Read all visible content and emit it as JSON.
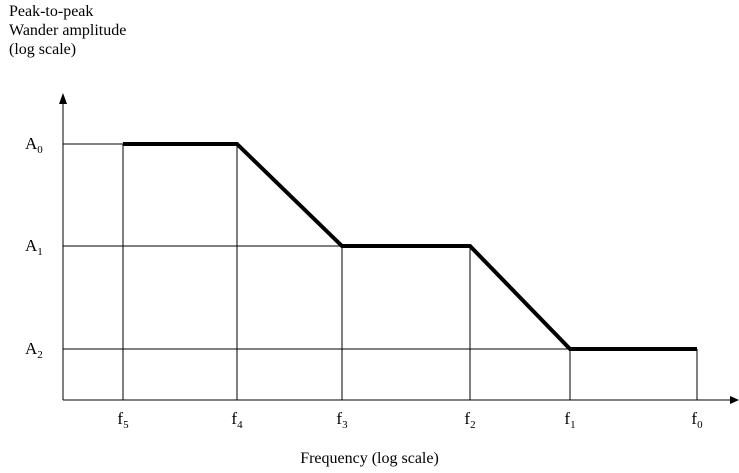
{
  "chart_data": {
    "type": "line",
    "title": "",
    "ylabel_lines": [
      "Peak-to-peak",
      "Wander amplitude",
      "(log scale)"
    ],
    "xlabel": "Frequency (log scale)",
    "x_ticks": [
      {
        "base": "f",
        "sub": "5"
      },
      {
        "base": "f",
        "sub": "4"
      },
      {
        "base": "f",
        "sub": "3"
      },
      {
        "base": "f",
        "sub": "2"
      },
      {
        "base": "f",
        "sub": "1"
      },
      {
        "base": "f",
        "sub": "0"
      }
    ],
    "y_ticks": [
      {
        "base": "A",
        "sub": "0"
      },
      {
        "base": "A",
        "sub": "1"
      },
      {
        "base": "A",
        "sub": "2"
      }
    ],
    "series": [
      {
        "points": [
          {
            "x": "f5",
            "y": "A0"
          },
          {
            "x": "f4",
            "y": "A0"
          },
          {
            "x": "f3",
            "y": "A1"
          },
          {
            "x": "f2",
            "y": "A1"
          },
          {
            "x": "f1",
            "y": "A2"
          },
          {
            "x": "f0",
            "y": "A2"
          }
        ]
      }
    ],
    "x_scale": "log",
    "y_scale": "log",
    "grid": true,
    "legend": "none"
  }
}
